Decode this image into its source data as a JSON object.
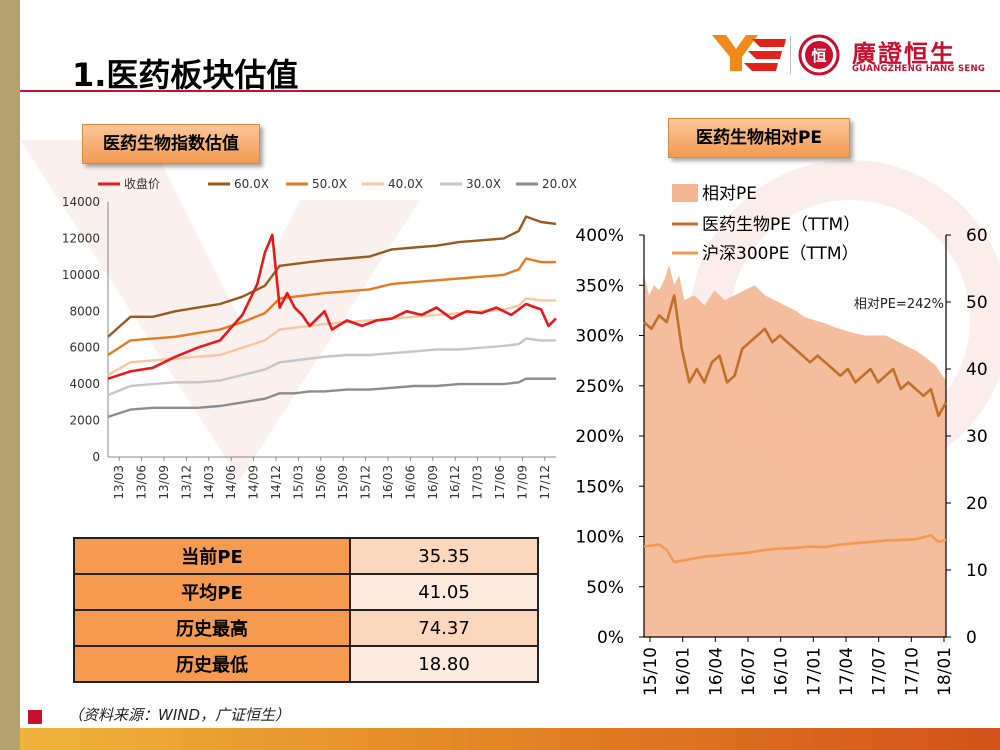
{
  "page": {
    "title": "1.医药板块估值",
    "source_note": "（资料来源：WIND，广证恒生）",
    "colors": {
      "accent_red": "#c8102e",
      "panel_orange": "#f29b52"
    }
  },
  "logo": {
    "name_cn": "廣證恒生",
    "name_en": "GUANGZHENG HANG SENG",
    "seal_char": "恒"
  },
  "stats_table": {
    "rows": [
      {
        "label": "当前PE",
        "value": "35.35"
      },
      {
        "label": "平均PE",
        "value": "41.05"
      },
      {
        "label": "历史最高",
        "value": "74.37"
      },
      {
        "label": "历史最低",
        "value": "18.80"
      }
    ]
  },
  "chart_data": [
    {
      "type": "line",
      "title": "医药生物指数估值",
      "x_tick_labels": [
        "13/03",
        "13/06",
        "13/09",
        "13/12",
        "14/03",
        "14/06",
        "14/09",
        "14/12",
        "15/03",
        "15/06",
        "15/09",
        "15/12",
        "16/03",
        "16/06",
        "16/09",
        "16/12",
        "17/03",
        "17/06",
        "17/09",
        "17/12"
      ],
      "ylim": [
        0,
        14000
      ],
      "y_ticks": [
        0,
        2000,
        4000,
        6000,
        8000,
        10000,
        12000,
        14000
      ],
      "legend_position": "top",
      "series": [
        {
          "name": "收盘价",
          "color": "#e8191c",
          "points": [
            [
              0,
              4300
            ],
            [
              3,
              4700
            ],
            [
              6,
              4900
            ],
            [
              9,
              5500
            ],
            [
              12,
              6000
            ],
            [
              15,
              6400
            ],
            [
              18,
              7800
            ],
            [
              20,
              9500
            ],
            [
              21,
              11200
            ],
            [
              22,
              12200
            ],
            [
              23,
              8200
            ],
            [
              24,
              9000
            ],
            [
              25,
              8200
            ],
            [
              26,
              7800
            ],
            [
              27,
              7200
            ],
            [
              29,
              8000
            ],
            [
              30,
              7000
            ],
            [
              32,
              7500
            ],
            [
              34,
              7200
            ],
            [
              36,
              7500
            ],
            [
              38,
              7600
            ],
            [
              40,
              8000
            ],
            [
              42,
              7800
            ],
            [
              44,
              8200
            ],
            [
              46,
              7600
            ],
            [
              48,
              8000
            ],
            [
              50,
              7900
            ],
            [
              52,
              8200
            ],
            [
              54,
              7800
            ],
            [
              56,
              8400
            ],
            [
              58,
              8100
            ],
            [
              59,
              7200
            ],
            [
              60,
              7600
            ]
          ]
        },
        {
          "name": "60.0X",
          "color": "#9a5a1f",
          "points": [
            [
              0,
              6600
            ],
            [
              3,
              7700
            ],
            [
              6,
              7700
            ],
            [
              9,
              8000
            ],
            [
              12,
              8200
            ],
            [
              15,
              8400
            ],
            [
              18,
              8800
            ],
            [
              21,
              9400
            ],
            [
              23,
              10500
            ],
            [
              25,
              10600
            ],
            [
              27,
              10700
            ],
            [
              29,
              10800
            ],
            [
              32,
              10900
            ],
            [
              35,
              11000
            ],
            [
              38,
              11400
            ],
            [
              41,
              11500
            ],
            [
              44,
              11600
            ],
            [
              47,
              11800
            ],
            [
              50,
              11900
            ],
            [
              53,
              12000
            ],
            [
              55,
              12400
            ],
            [
              56,
              13200
            ],
            [
              58,
              12900
            ],
            [
              60,
              12800
            ]
          ]
        },
        {
          "name": "50.0X",
          "color": "#e37b20",
          "points": [
            [
              0,
              5600
            ],
            [
              3,
              6400
            ],
            [
              6,
              6500
            ],
            [
              9,
              6600
            ],
            [
              12,
              6800
            ],
            [
              15,
              7000
            ],
            [
              18,
              7400
            ],
            [
              21,
              7900
            ],
            [
              23,
              8700
            ],
            [
              25,
              8800
            ],
            [
              27,
              8900
            ],
            [
              29,
              9000
            ],
            [
              32,
              9100
            ],
            [
              35,
              9200
            ],
            [
              38,
              9500
            ],
            [
              41,
              9600
            ],
            [
              44,
              9700
            ],
            [
              47,
              9800
            ],
            [
              50,
              9900
            ],
            [
              53,
              10000
            ],
            [
              55,
              10300
            ],
            [
              56,
              10900
            ],
            [
              58,
              10700
            ],
            [
              60,
              10700
            ]
          ]
        },
        {
          "name": "40.0X",
          "color": "#f6c8a2",
          "points": [
            [
              0,
              4500
            ],
            [
              3,
              5200
            ],
            [
              6,
              5300
            ],
            [
              9,
              5400
            ],
            [
              12,
              5500
            ],
            [
              15,
              5600
            ],
            [
              18,
              6000
            ],
            [
              21,
              6400
            ],
            [
              23,
              7000
            ],
            [
              25,
              7100
            ],
            [
              27,
              7200
            ],
            [
              29,
              7300
            ],
            [
              32,
              7400
            ],
            [
              35,
              7500
            ],
            [
              38,
              7600
            ],
            [
              41,
              7700
            ],
            [
              44,
              7800
            ],
            [
              47,
              7900
            ],
            [
              50,
              8000
            ],
            [
              53,
              8100
            ],
            [
              55,
              8300
            ],
            [
              56,
              8700
            ],
            [
              58,
              8600
            ],
            [
              60,
              8600
            ]
          ]
        },
        {
          "name": "30.0X",
          "color": "#c6c6c6",
          "points": [
            [
              0,
              3400
            ],
            [
              3,
              3900
            ],
            [
              6,
              4000
            ],
            [
              9,
              4100
            ],
            [
              12,
              4100
            ],
            [
              15,
              4200
            ],
            [
              18,
              4500
            ],
            [
              21,
              4800
            ],
            [
              23,
              5200
            ],
            [
              25,
              5300
            ],
            [
              27,
              5400
            ],
            [
              29,
              5500
            ],
            [
              32,
              5600
            ],
            [
              35,
              5600
            ],
            [
              38,
              5700
            ],
            [
              41,
              5800
            ],
            [
              44,
              5900
            ],
            [
              47,
              5900
            ],
            [
              50,
              6000
            ],
            [
              53,
              6100
            ],
            [
              55,
              6200
            ],
            [
              56,
              6500
            ],
            [
              58,
              6400
            ],
            [
              60,
              6400
            ]
          ]
        },
        {
          "name": "20.0X",
          "color": "#8c8c8c",
          "points": [
            [
              0,
              2200
            ],
            [
              3,
              2600
            ],
            [
              6,
              2700
            ],
            [
              9,
              2700
            ],
            [
              12,
              2700
            ],
            [
              15,
              2800
            ],
            [
              18,
              3000
            ],
            [
              21,
              3200
            ],
            [
              23,
              3500
            ],
            [
              25,
              3500
            ],
            [
              27,
              3600
            ],
            [
              29,
              3600
            ],
            [
              32,
              3700
            ],
            [
              35,
              3700
            ],
            [
              38,
              3800
            ],
            [
              41,
              3900
            ],
            [
              44,
              3900
            ],
            [
              47,
              4000
            ],
            [
              50,
              4000
            ],
            [
              53,
              4000
            ],
            [
              55,
              4100
            ],
            [
              56,
              4300
            ],
            [
              58,
              4300
            ],
            [
              60,
              4300
            ]
          ]
        }
      ]
    },
    {
      "type": "line",
      "title": "医药生物相对PE",
      "x_tick_labels": [
        "15/10",
        "16/01",
        "16/04",
        "16/07",
        "16/10",
        "17/01",
        "17/04",
        "17/07",
        "17/10",
        "18/01"
      ],
      "y_left": {
        "ticks": [
          "0%",
          "50%",
          "100%",
          "150%",
          "200%",
          "250%",
          "300%",
          "350%",
          "400%"
        ],
        "ylim": [
          0,
          400
        ]
      },
      "y_right": {
        "ticks": [
          0,
          10,
          20,
          30,
          40,
          50,
          60
        ],
        "ylim": [
          0,
          60
        ]
      },
      "annotation": "相对PE=242%",
      "legend_position": "top-left",
      "series": [
        {
          "name": "相对PE",
          "kind": "area",
          "axis": "left",
          "color": "#f3b692",
          "points": [
            [
              0,
              360
            ],
            [
              1,
              340
            ],
            [
              2,
              350
            ],
            [
              3,
              345
            ],
            [
              4,
              355
            ],
            [
              5,
              370
            ],
            [
              6,
              350
            ],
            [
              7,
              360
            ],
            [
              8,
              335
            ],
            [
              10,
              340
            ],
            [
              12,
              330
            ],
            [
              14,
              345
            ],
            [
              16,
              335
            ],
            [
              18,
              340
            ],
            [
              20,
              345
            ],
            [
              22,
              350
            ],
            [
              24,
              340
            ],
            [
              26,
              335
            ],
            [
              28,
              330
            ],
            [
              30,
              325
            ],
            [
              32,
              318
            ],
            [
              34,
              315
            ],
            [
              36,
              312
            ],
            [
              38,
              308
            ],
            [
              40,
              305
            ],
            [
              42,
              302
            ],
            [
              44,
              300
            ],
            [
              46,
              300
            ],
            [
              48,
              300
            ],
            [
              50,
              295
            ],
            [
              52,
              290
            ],
            [
              54,
              285
            ],
            [
              56,
              278
            ],
            [
              58,
              270
            ],
            [
              59,
              262
            ],
            [
              60,
              255
            ]
          ]
        },
        {
          "name": "医药生物PE（TTM）",
          "kind": "line",
          "axis": "right",
          "color": "#c0702a",
          "points": [
            [
              0,
              47
            ],
            [
              1,
              46
            ],
            [
              2,
              48
            ],
            [
              3,
              47
            ],
            [
              4,
              51
            ],
            [
              5,
              43
            ],
            [
              6,
              38
            ],
            [
              7,
              40
            ],
            [
              8,
              38
            ],
            [
              9,
              41
            ],
            [
              10,
              42
            ],
            [
              11,
              38
            ],
            [
              12,
              39
            ],
            [
              13,
              43
            ],
            [
              14,
              44
            ],
            [
              15,
              45
            ],
            [
              16,
              46
            ],
            [
              17,
              44
            ],
            [
              18,
              45
            ],
            [
              19,
              44
            ],
            [
              20,
              43
            ],
            [
              21,
              42
            ],
            [
              22,
              41
            ],
            [
              23,
              42
            ],
            [
              24,
              41
            ],
            [
              25,
              40
            ],
            [
              26,
              39
            ],
            [
              27,
              40
            ],
            [
              28,
              38
            ],
            [
              29,
              39
            ],
            [
              30,
              40
            ],
            [
              31,
              38
            ],
            [
              32,
              39
            ],
            [
              33,
              40
            ],
            [
              34,
              37
            ],
            [
              35,
              38
            ],
            [
              36,
              37
            ],
            [
              37,
              36
            ],
            [
              38,
              37
            ],
            [
              39,
              33
            ],
            [
              40,
              35
            ]
          ]
        },
        {
          "name": "沪深300PE（TTM）",
          "kind": "line",
          "axis": "right",
          "color": "#f19a50",
          "points": [
            [
              0,
              13.5
            ],
            [
              2,
              13.8
            ],
            [
              3,
              13
            ],
            [
              4,
              11.2
            ],
            [
              6,
              11.6
            ],
            [
              8,
              12
            ],
            [
              10,
              12.2
            ],
            [
              12,
              12.4
            ],
            [
              14,
              12.6
            ],
            [
              16,
              13
            ],
            [
              18,
              13.2
            ],
            [
              20,
              13.3
            ],
            [
              22,
              13.5
            ],
            [
              24,
              13.4
            ],
            [
              26,
              13.8
            ],
            [
              28,
              14
            ],
            [
              30,
              14.2
            ],
            [
              32,
              14.4
            ],
            [
              34,
              14.5
            ],
            [
              36,
              14.6
            ],
            [
              38,
              15.2
            ],
            [
              39,
              14.2
            ],
            [
              40,
              14.5
            ]
          ]
        }
      ]
    }
  ]
}
